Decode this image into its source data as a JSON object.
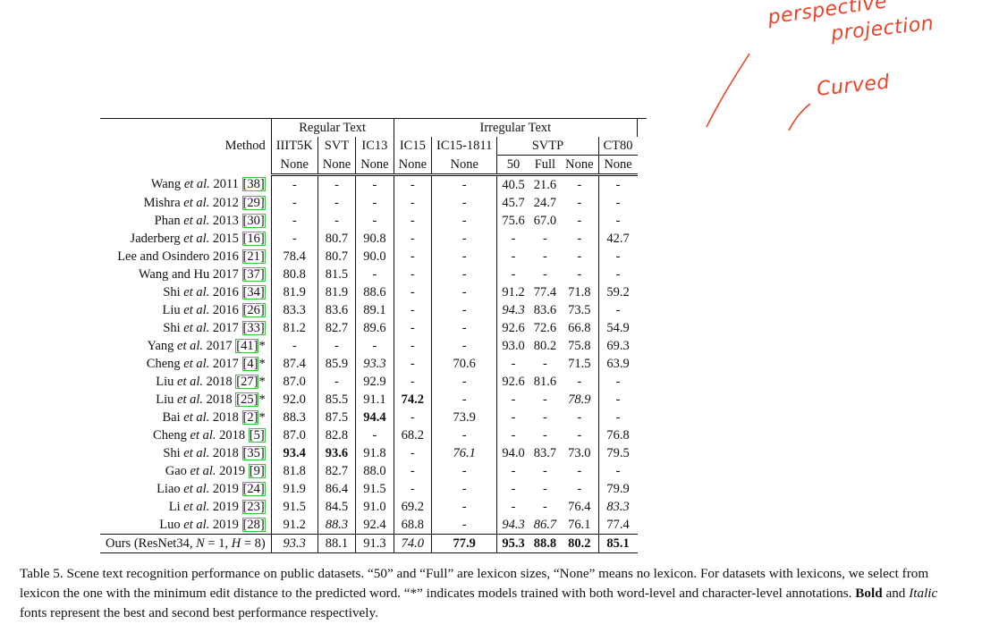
{
  "annotations": {
    "note1_line1": "perspective",
    "note1_line2": "projection",
    "note2": "Curved"
  },
  "table": {
    "method_header": "Method",
    "group_regular": "Regular Text",
    "group_irregular": "Irregular Text",
    "datasets": [
      "IIIT5K",
      "SVT",
      "IC13",
      "IC15",
      "IC15-1811",
      "SVTP",
      "CT80"
    ],
    "lexicons": [
      "None",
      "None",
      "None",
      "None",
      "None",
      "50",
      "Full",
      "None",
      "None"
    ],
    "rows": [
      {
        "method": "Wang ",
        "etal": "et al.",
        "year": " 2011 ",
        "cite": "[38]",
        "suffix": "",
        "cells": [
          {
            "v": "-"
          },
          {
            "v": "-"
          },
          {
            "v": "-"
          },
          {
            "v": "-"
          },
          {
            "v": "-"
          },
          {
            "v": "40.5"
          },
          {
            "v": "21.6"
          },
          {
            "v": "-"
          },
          {
            "v": "-"
          }
        ]
      },
      {
        "method": "Mishra ",
        "etal": "et al.",
        "year": " 2012 ",
        "cite": "[29]",
        "suffix": "",
        "cells": [
          {
            "v": "-"
          },
          {
            "v": "-"
          },
          {
            "v": "-"
          },
          {
            "v": "-"
          },
          {
            "v": "-"
          },
          {
            "v": "45.7"
          },
          {
            "v": "24.7"
          },
          {
            "v": "-"
          },
          {
            "v": "-"
          }
        ]
      },
      {
        "method": "Phan ",
        "etal": "et al.",
        "year": " 2013 ",
        "cite": "[30]",
        "suffix": "",
        "cells": [
          {
            "v": "-"
          },
          {
            "v": "-"
          },
          {
            "v": "-"
          },
          {
            "v": "-"
          },
          {
            "v": "-"
          },
          {
            "v": "75.6"
          },
          {
            "v": "67.0"
          },
          {
            "v": "-"
          },
          {
            "v": "-"
          }
        ]
      },
      {
        "method": "Jaderberg ",
        "etal": "et al.",
        "year": " 2015 ",
        "cite": "[16]",
        "suffix": "",
        "cells": [
          {
            "v": "-"
          },
          {
            "v": "80.7"
          },
          {
            "v": "90.8"
          },
          {
            "v": "-"
          },
          {
            "v": "-"
          },
          {
            "v": "-"
          },
          {
            "v": "-"
          },
          {
            "v": "-"
          },
          {
            "v": "42.7"
          }
        ]
      },
      {
        "method": "Lee and Osindero 2016 ",
        "etal": "",
        "year": "",
        "cite": "[21]",
        "suffix": "",
        "cells": [
          {
            "v": "78.4"
          },
          {
            "v": "80.7"
          },
          {
            "v": "90.0"
          },
          {
            "v": "-"
          },
          {
            "v": "-"
          },
          {
            "v": "-"
          },
          {
            "v": "-"
          },
          {
            "v": "-"
          },
          {
            "v": "-"
          }
        ]
      },
      {
        "method": "Wang and Hu 2017 ",
        "etal": "",
        "year": "",
        "cite": "[37]",
        "suffix": "",
        "cells": [
          {
            "v": "80.8"
          },
          {
            "v": "81.5"
          },
          {
            "v": "-"
          },
          {
            "v": "-"
          },
          {
            "v": "-"
          },
          {
            "v": "-"
          },
          {
            "v": "-"
          },
          {
            "v": "-"
          },
          {
            "v": "-"
          }
        ]
      },
      {
        "method": "Shi ",
        "etal": "et al.",
        "year": " 2016 ",
        "cite": "[34]",
        "suffix": "",
        "cells": [
          {
            "v": "81.9"
          },
          {
            "v": "81.9"
          },
          {
            "v": "88.6"
          },
          {
            "v": "-"
          },
          {
            "v": "-"
          },
          {
            "v": "91.2"
          },
          {
            "v": "77.4"
          },
          {
            "v": "71.8"
          },
          {
            "v": "59.2"
          }
        ]
      },
      {
        "method": "Liu ",
        "etal": "et al.",
        "year": " 2016 ",
        "cite": "[26]",
        "suffix": "",
        "cells": [
          {
            "v": "83.3"
          },
          {
            "v": "83.6"
          },
          {
            "v": "89.1"
          },
          {
            "v": "-"
          },
          {
            "v": "-"
          },
          {
            "v": "94.3",
            "s": "i"
          },
          {
            "v": "83.6"
          },
          {
            "v": "73.5"
          },
          {
            "v": "-"
          }
        ]
      },
      {
        "method": "Shi ",
        "etal": "et al.",
        "year": " 2017 ",
        "cite": "[33]",
        "suffix": "",
        "cells": [
          {
            "v": "81.2"
          },
          {
            "v": "82.7"
          },
          {
            "v": "89.6"
          },
          {
            "v": "-"
          },
          {
            "v": "-"
          },
          {
            "v": "92.6"
          },
          {
            "v": "72.6"
          },
          {
            "v": "66.8"
          },
          {
            "v": "54.9"
          }
        ]
      },
      {
        "method": "Yang ",
        "etal": "et al.",
        "year": " 2017 ",
        "cite": "[41]",
        "suffix": "*",
        "cells": [
          {
            "v": "-"
          },
          {
            "v": "-"
          },
          {
            "v": "-"
          },
          {
            "v": "-"
          },
          {
            "v": "-"
          },
          {
            "v": "93.0"
          },
          {
            "v": "80.2"
          },
          {
            "v": "75.8"
          },
          {
            "v": "69.3"
          }
        ]
      },
      {
        "method": "Cheng ",
        "etal": "et al.",
        "year": " 2017 ",
        "cite": "[4]",
        "suffix": "*",
        "cells": [
          {
            "v": "87.4"
          },
          {
            "v": "85.9"
          },
          {
            "v": "93.3",
            "s": "i"
          },
          {
            "v": "-"
          },
          {
            "v": "70.6"
          },
          {
            "v": "-"
          },
          {
            "v": "-"
          },
          {
            "v": "71.5"
          },
          {
            "v": "63.9"
          }
        ]
      },
      {
        "method": "Liu ",
        "etal": "et al.",
        "year": " 2018 ",
        "cite": "[27]",
        "suffix": "*",
        "cells": [
          {
            "v": "87.0"
          },
          {
            "v": "-"
          },
          {
            "v": "92.9"
          },
          {
            "v": "-"
          },
          {
            "v": "-"
          },
          {
            "v": "92.6"
          },
          {
            "v": "81.6"
          },
          {
            "v": "-"
          },
          {
            "v": "-"
          }
        ]
      },
      {
        "method": "Liu ",
        "etal": "et al.",
        "year": " 2018 ",
        "cite": "[25]",
        "suffix": "*",
        "cells": [
          {
            "v": "92.0"
          },
          {
            "v": "85.5"
          },
          {
            "v": "91.1"
          },
          {
            "v": "74.2",
            "s": "b"
          },
          {
            "v": "-"
          },
          {
            "v": "-"
          },
          {
            "v": "-"
          },
          {
            "v": "78.9",
            "s": "i"
          },
          {
            "v": "-"
          }
        ]
      },
      {
        "method": "Bai ",
        "etal": "et al.",
        "year": " 2018 ",
        "cite": "[2]",
        "suffix": "*",
        "cells": [
          {
            "v": "88.3"
          },
          {
            "v": "87.5"
          },
          {
            "v": "94.4",
            "s": "b"
          },
          {
            "v": "-"
          },
          {
            "v": "73.9"
          },
          {
            "v": "-"
          },
          {
            "v": "-"
          },
          {
            "v": "-"
          },
          {
            "v": "-"
          }
        ]
      },
      {
        "method": "Cheng ",
        "etal": "et al.",
        "year": " 2018 ",
        "cite": "[5]",
        "suffix": "",
        "cells": [
          {
            "v": "87.0"
          },
          {
            "v": "82.8"
          },
          {
            "v": "-"
          },
          {
            "v": "68.2"
          },
          {
            "v": "-"
          },
          {
            "v": "-"
          },
          {
            "v": "-"
          },
          {
            "v": "-"
          },
          {
            "v": "76.8"
          }
        ]
      },
      {
        "method": "Shi ",
        "etal": "et al.",
        "year": " 2018 ",
        "cite": "[35]",
        "suffix": "",
        "cells": [
          {
            "v": "93.4",
            "s": "b"
          },
          {
            "v": "93.6",
            "s": "b"
          },
          {
            "v": "91.8"
          },
          {
            "v": "-"
          },
          {
            "v": "76.1",
            "s": "i"
          },
          {
            "v": "94.0"
          },
          {
            "v": "83.7"
          },
          {
            "v": "73.0"
          },
          {
            "v": "79.5"
          }
        ]
      },
      {
        "method": "Gao ",
        "etal": "et al.",
        "year": " 2019 ",
        "cite": "[9]",
        "suffix": "",
        "cells": [
          {
            "v": "81.8"
          },
          {
            "v": "82.7"
          },
          {
            "v": "88.0"
          },
          {
            "v": "-"
          },
          {
            "v": "-"
          },
          {
            "v": "-"
          },
          {
            "v": "-"
          },
          {
            "v": "-"
          },
          {
            "v": "-"
          }
        ]
      },
      {
        "method": "Liao ",
        "etal": "et al.",
        "year": " 2019 ",
        "cite": "[24]",
        "suffix": "",
        "cells": [
          {
            "v": "91.9"
          },
          {
            "v": "86.4"
          },
          {
            "v": "91.5"
          },
          {
            "v": "-"
          },
          {
            "v": "-"
          },
          {
            "v": "-"
          },
          {
            "v": "-"
          },
          {
            "v": "-"
          },
          {
            "v": "79.9"
          }
        ]
      },
      {
        "method": "Li ",
        "etal": "et al.",
        "year": " 2019 ",
        "cite": "[23]",
        "suffix": "",
        "cells": [
          {
            "v": "91.5"
          },
          {
            "v": "84.5"
          },
          {
            "v": "91.0"
          },
          {
            "v": "69.2"
          },
          {
            "v": "-"
          },
          {
            "v": "-"
          },
          {
            "v": "-"
          },
          {
            "v": "76.4"
          },
          {
            "v": "83.3",
            "s": "i"
          }
        ]
      },
      {
        "method": "Luo ",
        "etal": "et al.",
        "year": " 2019 ",
        "cite": "[28]",
        "suffix": "",
        "cells": [
          {
            "v": "91.2"
          },
          {
            "v": "88.3",
            "s": "i"
          },
          {
            "v": "92.4"
          },
          {
            "v": "68.8"
          },
          {
            "v": "-"
          },
          {
            "v": "94.3",
            "s": "i"
          },
          {
            "v": "86.7",
            "s": "i"
          },
          {
            "v": "76.1"
          },
          {
            "v": "77.4"
          }
        ]
      }
    ],
    "ours": {
      "method_pre": "Ours (ResNet34, ",
      "N": "N",
      "eqN": " = 1, ",
      "H": "H",
      "eqH": " = 8)",
      "cells": [
        {
          "v": "93.3",
          "s": "i"
        },
        {
          "v": "88.1"
        },
        {
          "v": "91.3"
        },
        {
          "v": "74.0",
          "s": "i"
        },
        {
          "v": "77.9",
          "s": "b"
        },
        {
          "v": "95.3",
          "s": "b"
        },
        {
          "v": "88.8",
          "s": "b"
        },
        {
          "v": "80.2",
          "s": "b"
        },
        {
          "v": "85.1",
          "s": "b"
        }
      ]
    }
  },
  "caption": {
    "p1": "Table 5. Scene text recognition performance on public datasets. “50” and “Full” are lexicon sizes, “None” means no lexicon. For datasets with lexicons, we select from lexicon the one with the minimum edit distance to the predicted word. “*” indicates models trained with both word-level and character-level annotations. ",
    "bold_word": "Bold",
    "p2": " and ",
    "italic_word": "Italic",
    "p3": " fonts represent the best and second best performance respectively."
  }
}
